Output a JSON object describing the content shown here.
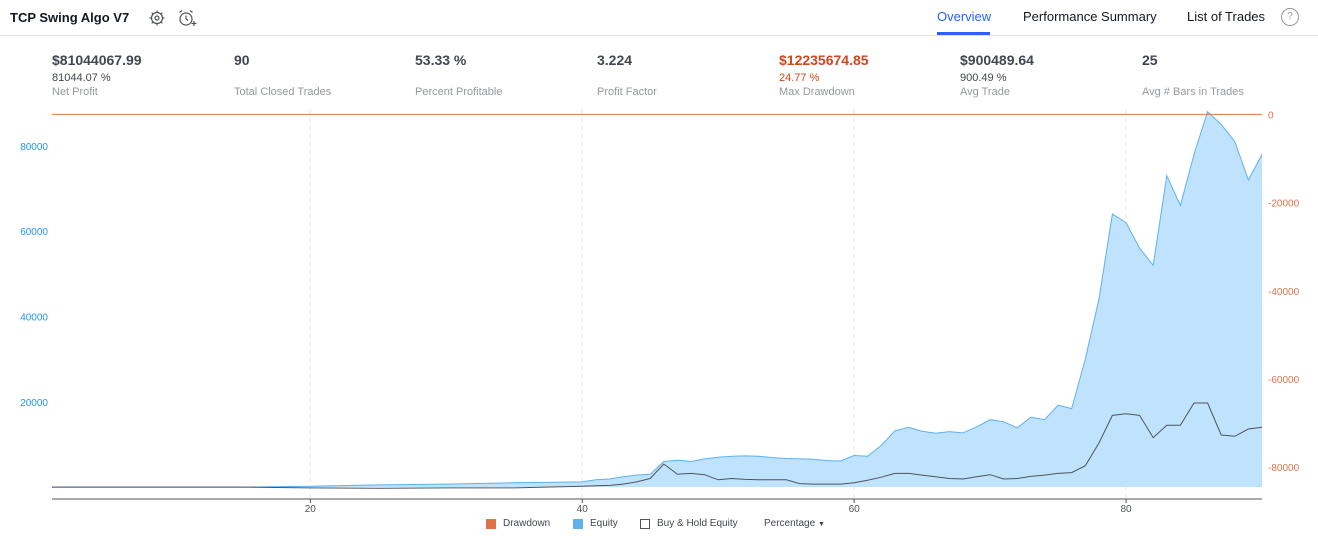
{
  "header": {
    "strategy_name": "TCP Swing Algo V7",
    "tabs": [
      "Overview",
      "Performance Summary",
      "List of Trades"
    ],
    "active_tab": "Overview",
    "help": "?"
  },
  "stats": [
    {
      "value": "$81044067.99",
      "pct": "81044.07 %",
      "label": "Net Profit"
    },
    {
      "value": "90",
      "pct": "",
      "label": "Total Closed Trades"
    },
    {
      "value": "53.33 %",
      "pct": "",
      "label": "Percent Profitable"
    },
    {
      "value": "3.224",
      "pct": "",
      "label": "Profit Factor"
    },
    {
      "value": "$12235674.85",
      "pct": "24.77 %",
      "label": "Max Drawdown"
    },
    {
      "value": "$900489.64",
      "pct": "900.49 %",
      "label": "Avg Trade"
    },
    {
      "value": "25",
      "pct": "",
      "label": "Avg # Bars in Trades"
    }
  ],
  "legend": {
    "drawdown": "Drawdown",
    "equity": "Equity",
    "buyhold": "Buy & Hold Equity",
    "mode": "Percentage"
  },
  "colors": {
    "equity_line": "#5eb1ef",
    "equity_fill": "#bfe3fc",
    "drawdown": "#e0724a",
    "buyhold": "#50535e",
    "accent": "#2962ff",
    "red": "#d1461e"
  },
  "chart_data": {
    "type": "area",
    "x_ticks": [
      20,
      40,
      60,
      80
    ],
    "y_left_ticks": [
      20000,
      40000,
      60000,
      80000
    ],
    "y_right_ticks": [
      0,
      -20000,
      -40000,
      -60000,
      -80000
    ],
    "x_range": [
      1,
      90
    ],
    "y_left_range": [
      -2800,
      88400
    ],
    "y_right_range": [
      -87200,
      1000
    ],
    "series": [
      {
        "name": "Equity",
        "x": [
          1,
          5,
          10,
          15,
          20,
          25,
          30,
          35,
          40,
          41,
          42,
          43,
          44,
          45,
          46,
          47,
          48,
          49,
          50,
          51,
          52,
          53,
          54,
          55,
          56,
          57,
          58,
          59,
          60,
          61,
          62,
          63,
          64,
          65,
          66,
          67,
          68,
          69,
          70,
          71,
          72,
          73,
          74,
          75,
          76,
          77,
          78,
          79,
          80,
          81,
          82,
          83,
          84,
          85,
          86,
          87,
          88,
          89,
          90
        ],
        "y": [
          0,
          0,
          0,
          0,
          200,
          500,
          700,
          1000,
          1200,
          1700,
          1900,
          2400,
          2800,
          3000,
          6000,
          6300,
          6000,
          6600,
          7000,
          7200,
          7300,
          7200,
          6900,
          6700,
          6600,
          6500,
          6200,
          6100,
          7400,
          7200,
          9800,
          13200,
          14000,
          13100,
          12600,
          13000,
          12700,
          14100,
          15800,
          15300,
          13900,
          16400,
          15800,
          19200,
          18400,
          30000,
          44000,
          64000,
          62000,
          56000,
          52000,
          73000,
          66000,
          78000,
          88000,
          85000,
          81000,
          72000,
          78000
        ]
      },
      {
        "name": "Buy & Hold Equity",
        "x": [
          1,
          5,
          10,
          15,
          20,
          25,
          30,
          35,
          40,
          41,
          42,
          43,
          44,
          45,
          46,
          47,
          48,
          49,
          50,
          51,
          52,
          53,
          54,
          55,
          56,
          57,
          58,
          59,
          60,
          61,
          62,
          63,
          64,
          65,
          66,
          67,
          68,
          69,
          70,
          71,
          72,
          73,
          74,
          75,
          76,
          77,
          78,
          79,
          80,
          81,
          82,
          83,
          84,
          85,
          86,
          87,
          88,
          89,
          90
        ],
        "y": [
          0,
          0,
          0,
          0,
          -200,
          -300,
          -200,
          -200,
          200,
          300,
          400,
          700,
          1200,
          2000,
          5400,
          3000,
          3200,
          2900,
          1700,
          2000,
          1800,
          1700,
          1700,
          1700,
          800,
          700,
          700,
          700,
          1000,
          1600,
          2300,
          3200,
          3200,
          2800,
          2400,
          2000,
          1900,
          2400,
          2900,
          1900,
          2000,
          2500,
          2800,
          3200,
          3400,
          5000,
          10300,
          16800,
          17200,
          16800,
          11600,
          14500,
          14500,
          19700,
          19700,
          12200,
          11900,
          13600,
          14000
        ]
      },
      {
        "name": "Drawdown",
        "x": [
          1,
          90
        ],
        "y": [
          0,
          0
        ]
      }
    ]
  }
}
